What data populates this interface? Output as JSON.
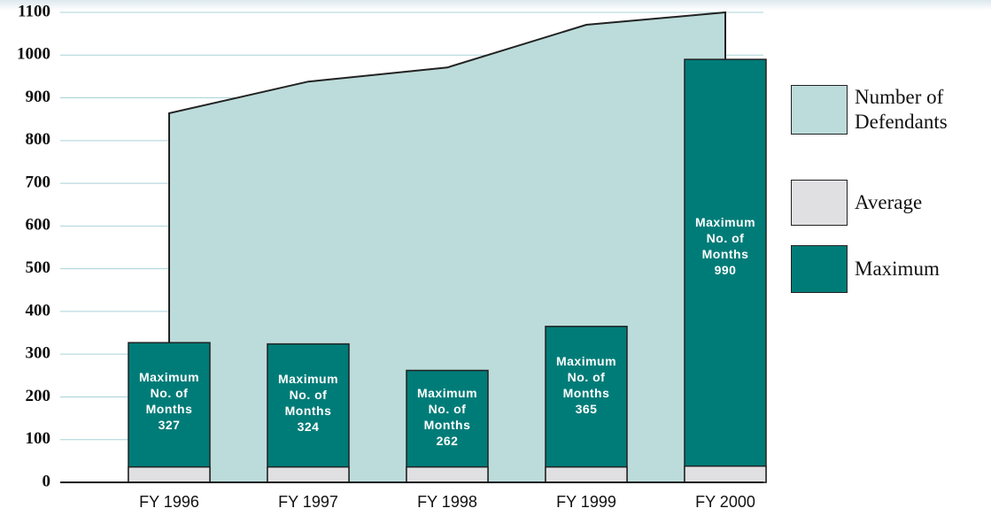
{
  "chart_data": {
    "type": "bar",
    "categories": [
      "FY 1996",
      "FY 1997",
      "FY 1998",
      "FY 1999",
      "FY 2000"
    ],
    "bar_label": "Maximum No. of Months",
    "series": [
      {
        "name": "Number of Defendants",
        "color": "#bcdcdb",
        "kind": "area",
        "values": [
          864,
          938,
          971,
          1071,
          1100
        ]
      },
      {
        "name": "Average",
        "color": "#e0e0e2",
        "kind": "bar",
        "values": [
          36,
          36,
          36,
          36,
          38
        ]
      },
      {
        "name": "Maximum",
        "color": "#007c78",
        "kind": "bar",
        "values": [
          327,
          324,
          262,
          365,
          990
        ]
      }
    ],
    "ylim": [
      0,
      1100
    ],
    "yticks": [
      0,
      100,
      200,
      300,
      400,
      500,
      600,
      700,
      800,
      900,
      1000,
      1100
    ],
    "grid": true
  }
}
